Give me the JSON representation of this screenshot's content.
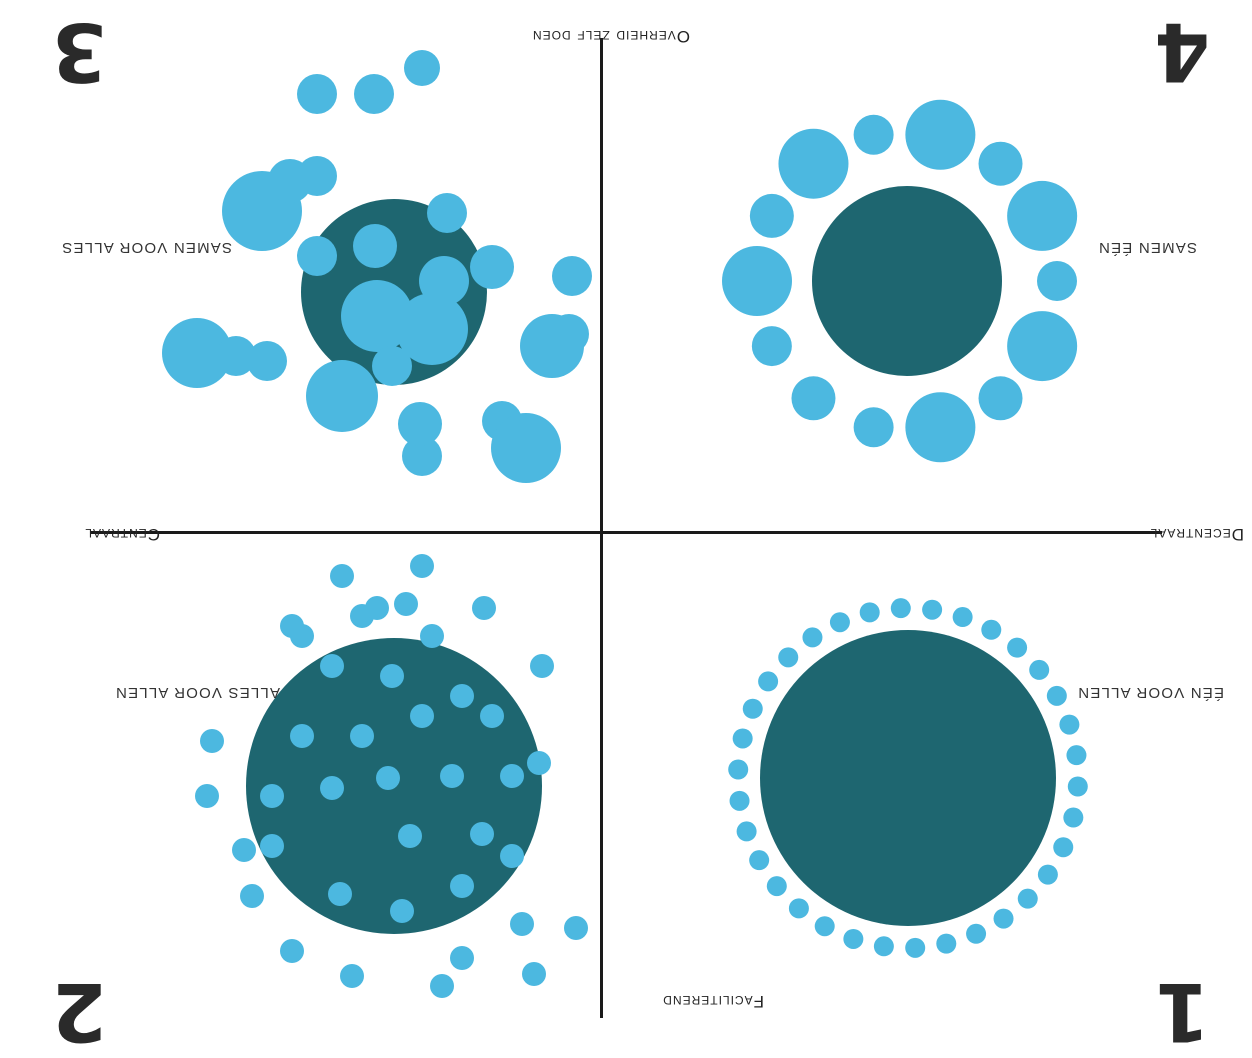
{
  "axes": {
    "top": "Faciliterend",
    "bottom": "Overheid zelf doen",
    "left": "Decentraal",
    "right": "Centraal"
  },
  "quadrants": [
    {
      "number": "1",
      "label": "één voor allen"
    },
    {
      "number": "2",
      "label": "Alles voor allen"
    },
    {
      "number": "3",
      "label": "Samen voor alles"
    },
    {
      "number": "4",
      "label": "Samen één"
    }
  ],
  "colors": {
    "dark_circle": "#1e6670",
    "light_circle": "#4cb8e0",
    "axis": "#1a1a1a"
  }
}
